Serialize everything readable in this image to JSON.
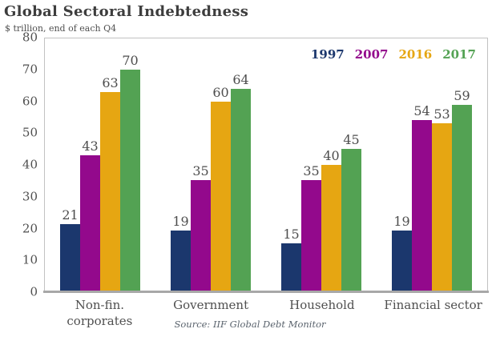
{
  "header": {
    "title": "Global Sectoral Indebtedness",
    "subtitle": "$ trillion, end of each Q4"
  },
  "chart_data": {
    "type": "bar",
    "title": "Global Sectoral Indebtedness",
    "subtitle": "$ trillion, end of each Q4",
    "categories": [
      "Non-fin.\ncorporates",
      "Government",
      "Household",
      "Financial sector"
    ],
    "series": [
      {
        "name": "1997",
        "color": "#1b376d",
        "values": [
          21,
          19,
          15,
          19
        ]
      },
      {
        "name": "2007",
        "color": "#93098c",
        "values": [
          43,
          35,
          35,
          54
        ]
      },
      {
        "name": "2016",
        "color": "#e6a612",
        "values": [
          63,
          60,
          40,
          53
        ]
      },
      {
        "name": "2017",
        "color": "#53a253",
        "values": [
          70,
          64,
          45,
          59
        ]
      }
    ],
    "ylim": [
      0,
      80
    ],
    "yticks": [
      0,
      10,
      20,
      30,
      40,
      50,
      60,
      70,
      80
    ],
    "grid": false,
    "data_labels": true,
    "legend_position": "top-right-inside",
    "source": "Source: IIF Global Debt Monitor"
  },
  "colors": {
    "title_text": "#3d3d3d",
    "axis_text": "#4f4f4f",
    "plot_border": "#c2c2c2",
    "axis_line": "#a8a8a8",
    "background": "#ffffff"
  }
}
